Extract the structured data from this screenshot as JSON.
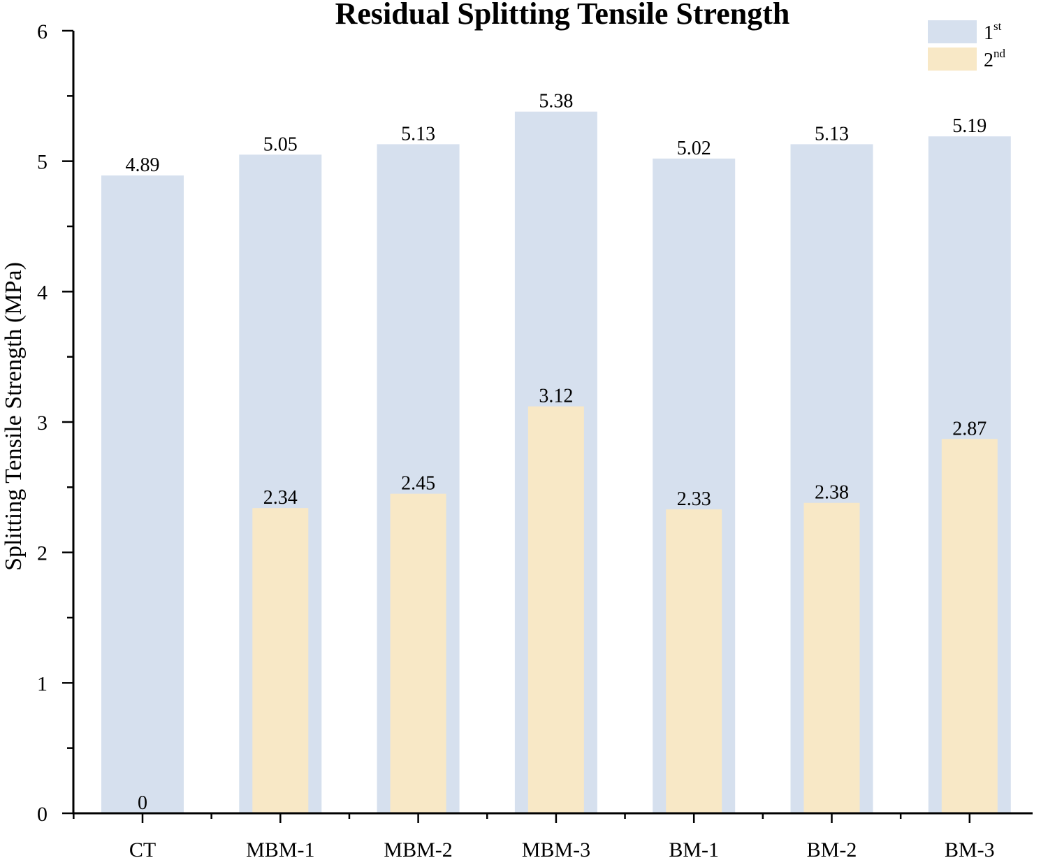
{
  "chart_data": {
    "type": "bar",
    "title": "Residual Splitting Tensile Strength",
    "xlabel": "",
    "ylabel": "Splitting Tensile Strength (MPa)",
    "ylim": [
      0,
      6
    ],
    "yticks": [
      "0",
      "1",
      "2",
      "3",
      "4",
      "5",
      "6"
    ],
    "categories": [
      "CT",
      "MBM-1",
      "MBM-2",
      "MBM-3",
      "BM-1",
      "BM-2",
      "BM-3"
    ],
    "series": [
      {
        "name": "1st",
        "legend_base": "1",
        "legend_sup": "st",
        "color": "#d6e0ee",
        "values": [
          4.89,
          5.05,
          5.13,
          5.38,
          5.02,
          5.13,
          5.19
        ],
        "labels": [
          "4.89",
          "5.05",
          "5.13",
          "5.38",
          "5.02",
          "5.13",
          "5.19"
        ]
      },
      {
        "name": "2nd",
        "legend_base": "2",
        "legend_sup": "nd",
        "color": "#f8e8c6",
        "values": [
          0,
          2.34,
          2.45,
          3.12,
          2.33,
          2.38,
          2.87
        ],
        "labels": [
          "0",
          "2.34",
          "2.45",
          "3.12",
          "2.33",
          "2.38",
          "2.87"
        ]
      }
    ],
    "legend_position": "top-right",
    "grid": false
  }
}
